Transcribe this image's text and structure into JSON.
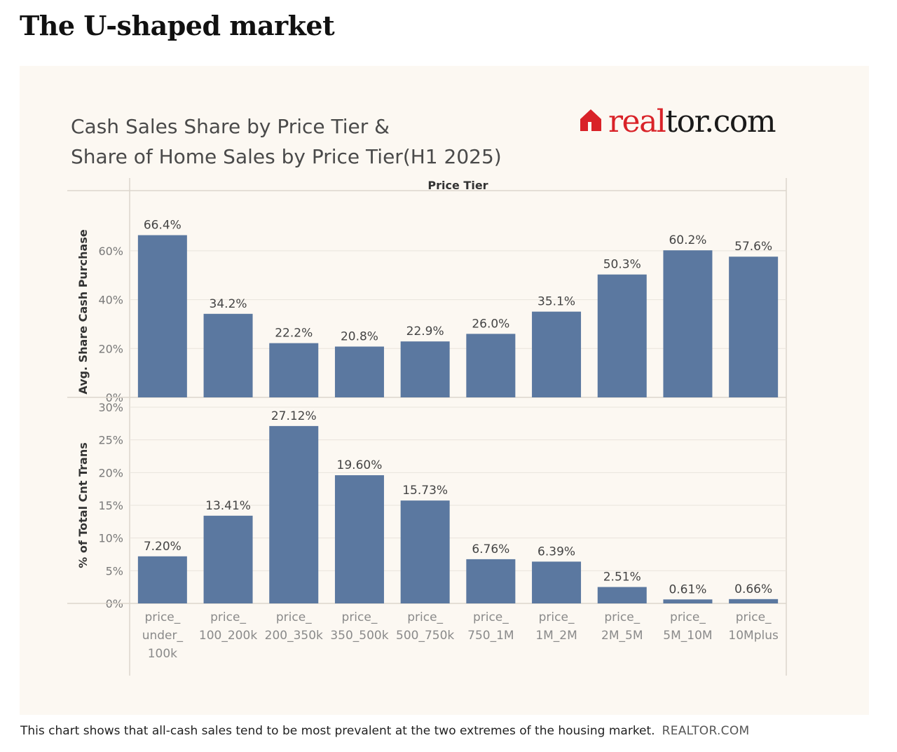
{
  "heading": "The U-shaped market",
  "caption": "This chart shows that all-cash sales tend to be most prevalent at the two extremes of the housing market.",
  "caption_credit": "REALTOR.COM",
  "logo": {
    "part1": "real",
    "part2": "tor.com",
    "color_primary": "#d92228",
    "color_secondary": "#1a1a1a"
  },
  "colors": {
    "bar": "#5b78a0",
    "panel_bg": "#fcf8f2",
    "grid": "#e9e4dc",
    "axis_line": "#dcd6cc"
  },
  "chart_data": {
    "type": "bar",
    "title_lines": [
      "Cash Sales Share by Price Tier &",
      "Share of Home Sales by Price Tier(H1 2025)"
    ],
    "column_header": "Price Tier",
    "categories": [
      [
        "price_",
        "under_",
        "100k"
      ],
      [
        "price_",
        "100_200k"
      ],
      [
        "price_",
        "200_350k"
      ],
      [
        "price_",
        "350_500k"
      ],
      [
        "price_",
        "500_750k"
      ],
      [
        "price_",
        "750_1M"
      ],
      [
        "price_",
        "1M_2M"
      ],
      [
        "price_",
        "2M_5M"
      ],
      [
        "price_",
        "5M_10M"
      ],
      [
        "price_",
        "10Mplus"
      ]
    ],
    "panels": [
      {
        "ylabel": "Avg. Share Cash Purchase",
        "ylim": [
          0,
          70
        ],
        "ticks": [
          0,
          20,
          40,
          60
        ],
        "tick_labels": [
          "0%",
          "20%",
          "40%",
          "60%"
        ],
        "values": [
          66.4,
          34.2,
          22.2,
          20.8,
          22.9,
          26.0,
          35.1,
          50.3,
          60.2,
          57.6
        ],
        "value_labels": [
          "66.4%",
          "34.2%",
          "22.2%",
          "20.8%",
          "22.9%",
          "26.0%",
          "35.1%",
          "50.3%",
          "60.2%",
          "57.6%"
        ]
      },
      {
        "ylabel": "% of Total Cnt Trans",
        "ylim": [
          0,
          30
        ],
        "ticks": [
          0,
          5,
          10,
          15,
          20,
          25,
          30
        ],
        "tick_labels": [
          "0%",
          "5%",
          "10%",
          "15%",
          "20%",
          "25%",
          "30%"
        ],
        "values": [
          7.2,
          13.41,
          27.12,
          19.6,
          15.73,
          6.76,
          6.39,
          2.51,
          0.61,
          0.66
        ],
        "value_labels": [
          "7.20%",
          "13.41%",
          "27.12%",
          "19.60%",
          "15.73%",
          "6.76%",
          "6.39%",
          "2.51%",
          "0.61%",
          "0.66%"
        ]
      }
    ],
    "grid": true
  }
}
